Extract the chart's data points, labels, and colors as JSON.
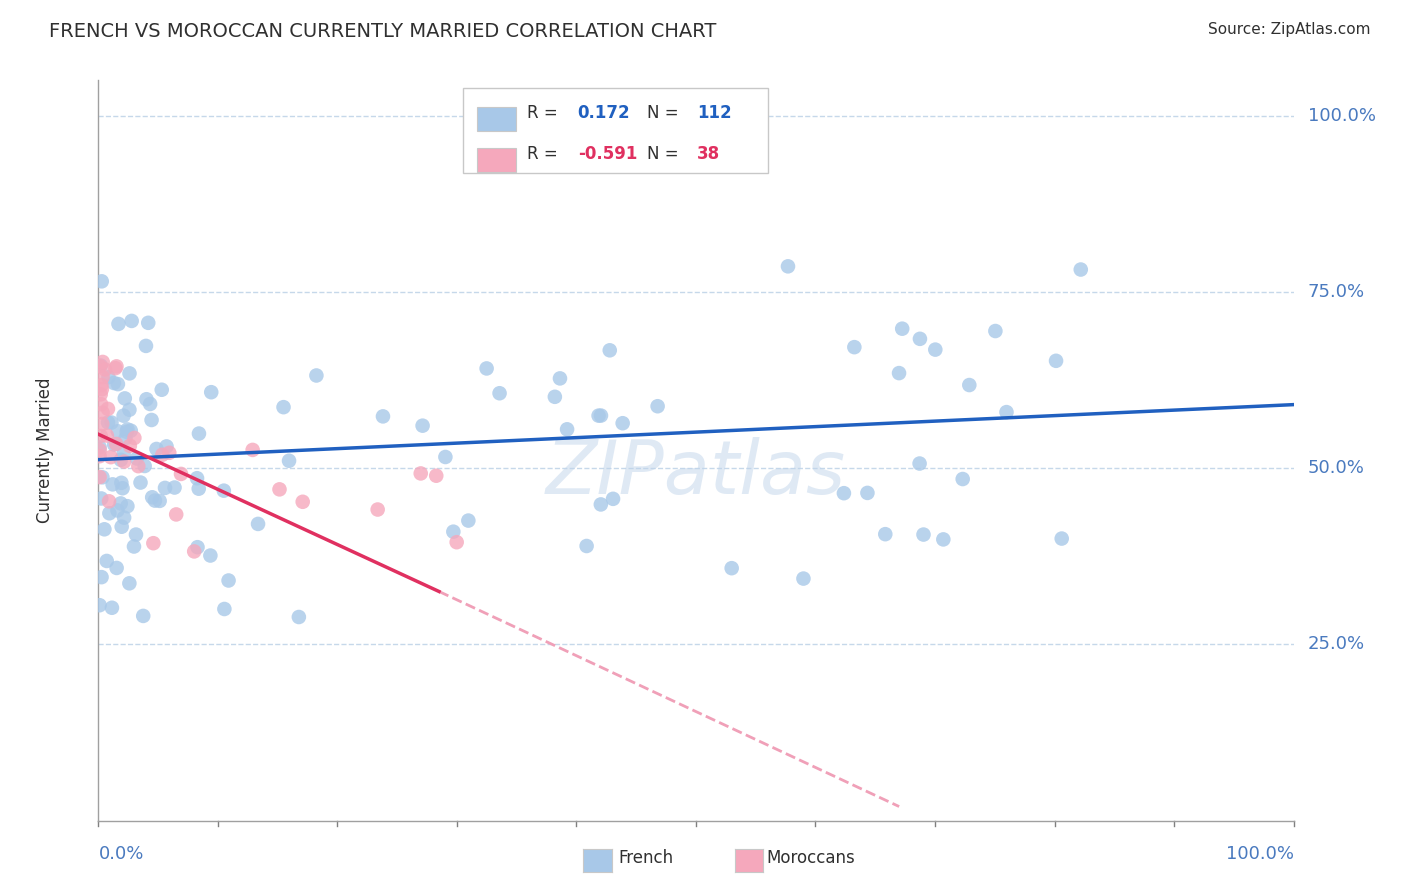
{
  "title": "FRENCH VS MOROCCAN CURRENTLY MARRIED CORRELATION CHART",
  "source": "Source: ZipAtlas.com",
  "ylabel": "Currently Married",
  "french_R": 0.172,
  "french_N": 112,
  "moroccan_R": -0.591,
  "moroccan_N": 38,
  "french_color": "#a8c8e8",
  "moroccan_color": "#f5a8bc",
  "french_line_color": "#2060c0",
  "moroccan_line_color": "#e03060",
  "moroccan_dashed_color": "#f0a0b8",
  "background_color": "#ffffff",
  "grid_color": "#c0d4e8",
  "title_color": "#303030",
  "axis_label_color": "#4a7abf",
  "watermark_color": "#c0d4ea",
  "legend_r_color": "#303030",
  "legend_val1_color": "#2060c0",
  "legend_val2_color": "#e03060",
  "legend_border_color": "#c8c8c8"
}
